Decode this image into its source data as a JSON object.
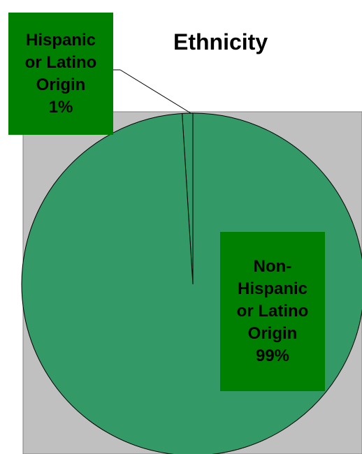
{
  "chart_data": {
    "type": "pie",
    "title": "Ethnicity",
    "slices": [
      {
        "name": "Hispanic or Latino Origin",
        "value": 1,
        "percent_label": "1%",
        "color": "#339966"
      },
      {
        "name": "Non-Hispanic or Latino Origin",
        "value": 99,
        "percent_label": "99%",
        "color": "#339966"
      }
    ],
    "colors": {
      "plot_area": "#c0c0c0",
      "label_background": "#008000",
      "slice_fill": "#339966"
    },
    "labels": {
      "hispanic": [
        "Hispanic",
        "or Latino",
        "Origin",
        "1%"
      ],
      "non_hispanic": [
        "Non-",
        "Hispanic",
        "or Latino",
        "Origin",
        "99%"
      ]
    }
  }
}
